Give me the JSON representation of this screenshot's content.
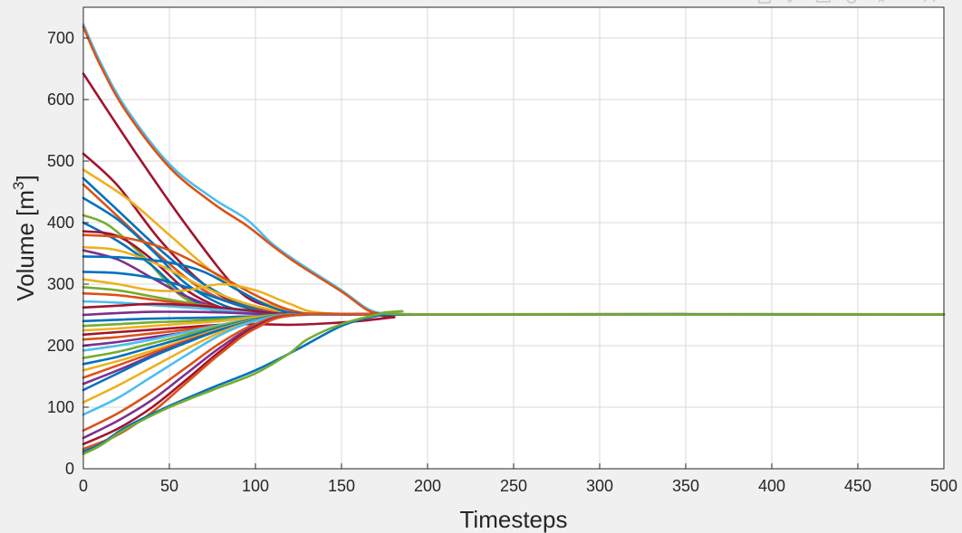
{
  "chart_data": {
    "type": "line",
    "title": "",
    "xlabel": "Timesteps",
    "ylabel_text": "Volume [m",
    "ylabel_superscript": "3",
    "ylabel_close": "]",
    "xlim": [
      0,
      500
    ],
    "ylim": [
      0,
      750
    ],
    "xticks": [
      0,
      50,
      100,
      150,
      200,
      250,
      300,
      350,
      400,
      450,
      500
    ],
    "yticks": [
      0,
      100,
      200,
      300,
      400,
      500,
      600,
      700
    ],
    "grid": true,
    "legend": "none",
    "converged_value": 251,
    "palette": [
      "#0072BD",
      "#D95319",
      "#EDB120",
      "#7E2F8E",
      "#77AC30",
      "#4DBEEE",
      "#A2142F"
    ],
    "series": [
      {
        "color": "#4DBEEE",
        "x": [
          0,
          10,
          25,
          50,
          75,
          95,
          110,
          125,
          150,
          165,
          175,
          185,
          200,
          500
        ],
        "y": [
          722,
          660,
          585,
          495,
          440,
          405,
          365,
          335,
          290,
          260,
          252,
          251,
          251,
          251
        ]
      },
      {
        "color": "#D95319",
        "x": [
          0,
          10,
          25,
          50,
          75,
          95,
          110,
          125,
          150,
          165,
          175,
          185,
          200,
          500
        ],
        "y": [
          718,
          655,
          580,
          490,
          432,
          395,
          362,
          332,
          288,
          258,
          251,
          251,
          251,
          251
        ]
      },
      {
        "color": "#A2142F",
        "x": [
          0,
          30,
          60,
          90,
          110,
          125,
          140,
          200,
          500
        ],
        "y": [
          642,
          515,
          395,
          290,
          262,
          252,
          251,
          251,
          251
        ]
      },
      {
        "color": "#A2142F",
        "x": [
          0,
          20,
          45,
          70,
          95,
          120,
          140,
          200,
          500
        ],
        "y": [
          512,
          460,
          370,
          300,
          262,
          252,
          251,
          251,
          251
        ]
      },
      {
        "color": "#EDB120",
        "x": [
          0,
          25,
          50,
          75,
          100,
          125,
          140,
          200,
          500
        ],
        "y": [
          486,
          440,
          380,
          320,
          275,
          255,
          251,
          251,
          251
        ]
      },
      {
        "color": "#0072BD",
        "x": [
          0,
          20,
          45,
          70,
          95,
          120,
          140,
          200,
          500
        ],
        "y": [
          472,
          420,
          355,
          300,
          265,
          253,
          251,
          251,
          251
        ]
      },
      {
        "color": "#D95319",
        "x": [
          0,
          20,
          45,
          70,
          95,
          120,
          140,
          200,
          500
        ],
        "y": [
          462,
          410,
          345,
          290,
          262,
          253,
          251,
          251,
          251
        ]
      },
      {
        "color": "#0072BD",
        "x": [
          0,
          20,
          40,
          60,
          85,
          110,
          135,
          200,
          500
        ],
        "y": [
          440,
          405,
          355,
          300,
          262,
          253,
          251,
          251,
          251
        ]
      },
      {
        "color": "#77AC30",
        "x": [
          0,
          15,
          35,
          55,
          75,
          100,
          125,
          200,
          500
        ],
        "y": [
          412,
          395,
          345,
          285,
          258,
          252,
          251,
          251,
          251
        ]
      },
      {
        "color": "#0072BD",
        "x": [
          0,
          20,
          40,
          60,
          80,
          105,
          130,
          200,
          500
        ],
        "y": [
          400,
          370,
          330,
          280,
          258,
          252,
          251,
          251,
          251
        ]
      },
      {
        "color": "#A2142F",
        "x": [
          0,
          20,
          40,
          60,
          80,
          100,
          125,
          200,
          500
        ],
        "y": [
          386,
          378,
          340,
          290,
          262,
          253,
          251,
          251,
          251
        ]
      },
      {
        "color": "#D95319",
        "x": [
          0,
          25,
          50,
          75,
          100,
          120,
          140,
          200,
          500
        ],
        "y": [
          380,
          375,
          355,
          320,
          282,
          258,
          251,
          251,
          251
        ]
      },
      {
        "color": "#EDB120",
        "x": [
          0,
          20,
          45,
          70,
          95,
          120,
          140,
          200,
          500
        ],
        "y": [
          360,
          355,
          330,
          295,
          268,
          254,
          251,
          251,
          251
        ]
      },
      {
        "color": "#7E2F8E",
        "x": [
          0,
          20,
          40,
          60,
          80,
          100,
          125,
          200,
          500
        ],
        "y": [
          355,
          340,
          310,
          280,
          260,
          253,
          251,
          251,
          251
        ]
      },
      {
        "color": "#0072BD",
        "x": [
          0,
          25,
          50,
          70,
          90,
          110,
          130,
          200,
          500
        ],
        "y": [
          345,
          343,
          335,
          320,
          290,
          262,
          252,
          251,
          251
        ]
      },
      {
        "color": "#0072BD",
        "x": [
          0,
          20,
          40,
          60,
          80,
          100,
          125,
          200,
          500
        ],
        "y": [
          320,
          318,
          310,
          295,
          275,
          258,
          251,
          251,
          251
        ]
      },
      {
        "color": "#EDB120",
        "x": [
          0,
          20,
          40,
          60,
          80,
          100,
          120,
          140,
          200,
          500
        ],
        "y": [
          308,
          300,
          290,
          290,
          300,
          290,
          268,
          253,
          251,
          251
        ]
      },
      {
        "color": "#77AC30",
        "x": [
          0,
          20,
          40,
          60,
          80,
          100,
          125,
          200,
          500
        ],
        "y": [
          295,
          290,
          280,
          270,
          262,
          256,
          251,
          251,
          251
        ]
      },
      {
        "color": "#D95319",
        "x": [
          0,
          20,
          40,
          60,
          80,
          100,
          125,
          200,
          500
        ],
        "y": [
          285,
          282,
          275,
          268,
          262,
          256,
          251,
          251,
          251
        ]
      },
      {
        "color": "#4DBEEE",
        "x": [
          0,
          20,
          40,
          60,
          80,
          100,
          125,
          200,
          500
        ],
        "y": [
          272,
          270,
          266,
          262,
          258,
          255,
          251,
          251,
          251
        ]
      },
      {
        "color": "#A2142F",
        "x": [
          0,
          20,
          40,
          60,
          80,
          100,
          125,
          200,
          500
        ],
        "y": [
          262,
          265,
          268,
          266,
          262,
          256,
          251,
          251,
          251
        ]
      },
      {
        "color": "#7E2F8E",
        "x": [
          0,
          20,
          40,
          60,
          80,
          100,
          125,
          200,
          500
        ],
        "y": [
          250,
          253,
          255,
          255,
          254,
          252,
          251,
          251,
          251
        ]
      },
      {
        "color": "#0072BD",
        "x": [
          0,
          20,
          40,
          60,
          80,
          100,
          125,
          200,
          500
        ],
        "y": [
          240,
          242,
          244,
          245,
          246,
          248,
          251,
          251,
          251
        ]
      },
      {
        "color": "#77AC30",
        "x": [
          0,
          20,
          40,
          60,
          80,
          100,
          125,
          200,
          500
        ],
        "y": [
          232,
          235,
          238,
          240,
          243,
          247,
          251,
          251,
          251
        ]
      },
      {
        "color": "#EDB120",
        "x": [
          0,
          20,
          40,
          60,
          80,
          100,
          125,
          200,
          500
        ],
        "y": [
          225,
          228,
          232,
          236,
          240,
          246,
          251,
          251,
          251
        ]
      },
      {
        "color": "#A2142F",
        "x": [
          0,
          20,
          40,
          60,
          80,
          100,
          120,
          140,
          160,
          180,
          200,
          500
        ],
        "y": [
          218,
          222,
          226,
          230,
          234,
          235,
          234,
          236,
          240,
          246,
          251,
          251
        ]
      },
      {
        "color": "#D95319",
        "x": [
          0,
          20,
          40,
          60,
          80,
          100,
          125,
          200,
          500
        ],
        "y": [
          210,
          214,
          220,
          226,
          234,
          242,
          250,
          251,
          251
        ]
      },
      {
        "color": "#7E2F8E",
        "x": [
          0,
          20,
          40,
          60,
          80,
          100,
          125,
          200,
          500
        ],
        "y": [
          200,
          206,
          214,
          222,
          232,
          242,
          250,
          251,
          251
        ]
      },
      {
        "color": "#4DBEEE",
        "x": [
          0,
          20,
          40,
          60,
          80,
          100,
          125,
          200,
          500
        ],
        "y": [
          192,
          200,
          210,
          222,
          234,
          244,
          250,
          251,
          251
        ]
      },
      {
        "color": "#77AC30",
        "x": [
          0,
          20,
          40,
          60,
          80,
          100,
          125,
          200,
          500
        ],
        "y": [
          180,
          190,
          204,
          218,
          232,
          244,
          251,
          251,
          251
        ]
      },
      {
        "color": "#0072BD",
        "x": [
          0,
          20,
          40,
          60,
          80,
          100,
          125,
          200,
          500
        ],
        "y": [
          170,
          182,
          198,
          214,
          230,
          243,
          251,
          251,
          251
        ]
      },
      {
        "color": "#EDB120",
        "x": [
          0,
          20,
          40,
          60,
          80,
          100,
          125,
          200,
          500
        ],
        "y": [
          160,
          175,
          192,
          210,
          228,
          242,
          251,
          251,
          251
        ]
      },
      {
        "color": "#D95319",
        "x": [
          0,
          20,
          40,
          60,
          80,
          100,
          125,
          200,
          500
        ],
        "y": [
          148,
          168,
          188,
          208,
          226,
          241,
          251,
          251,
          251
        ]
      },
      {
        "color": "#7E2F8E",
        "x": [
          0,
          20,
          40,
          60,
          80,
          100,
          125,
          200,
          500
        ],
        "y": [
          138,
          160,
          184,
          206,
          226,
          241,
          251,
          251,
          251
        ]
      },
      {
        "color": "#0072BD",
        "x": [
          0,
          20,
          40,
          60,
          80,
          100,
          125,
          200,
          500
        ],
        "y": [
          128,
          155,
          182,
          205,
          226,
          241,
          251,
          251,
          251
        ]
      },
      {
        "color": "#EDB120",
        "x": [
          0,
          20,
          40,
          60,
          80,
          100,
          125,
          200,
          500
        ],
        "y": [
          108,
          135,
          165,
          195,
          222,
          240,
          251,
          251,
          251
        ]
      },
      {
        "color": "#4DBEEE",
        "x": [
          0,
          20,
          40,
          60,
          80,
          100,
          125,
          200,
          500
        ],
        "y": [
          88,
          115,
          150,
          185,
          218,
          240,
          251,
          251,
          251
        ]
      },
      {
        "color": "#D95319",
        "x": [
          0,
          20,
          40,
          60,
          80,
          100,
          125,
          200,
          500
        ],
        "y": [
          62,
          90,
          125,
          165,
          205,
          235,
          251,
          251,
          251
        ]
      },
      {
        "color": "#7E2F8E",
        "x": [
          0,
          20,
          40,
          60,
          80,
          100,
          125,
          200,
          500
        ],
        "y": [
          50,
          78,
          112,
          155,
          198,
          232,
          250,
          251,
          251
        ]
      },
      {
        "color": "#A2142F",
        "x": [
          0,
          20,
          40,
          60,
          80,
          100,
          125,
          200,
          500
        ],
        "y": [
          40,
          65,
          100,
          145,
          192,
          230,
          250,
          251,
          251
        ]
      },
      {
        "color": "#D95319",
        "x": [
          0,
          20,
          40,
          60,
          80,
          100,
          125,
          200,
          500
        ],
        "y": [
          32,
          55,
          92,
          140,
          188,
          228,
          250,
          251,
          251
        ]
      },
      {
        "color": "#0072BD",
        "x": [
          0,
          10,
          25,
          50,
          75,
          100,
          125,
          150,
          170,
          185,
          200,
          500
        ],
        "y": [
          28,
          40,
          68,
          102,
          132,
          160,
          195,
          232,
          248,
          251,
          251,
          251
        ]
      },
      {
        "color": "#77AC30",
        "x": [
          0,
          10,
          25,
          50,
          75,
          100,
          120,
          130,
          150,
          170,
          185,
          200,
          500
        ],
        "y": [
          24,
          38,
          65,
          100,
          128,
          155,
          188,
          210,
          235,
          250,
          256,
          251,
          251
        ]
      }
    ]
  }
}
